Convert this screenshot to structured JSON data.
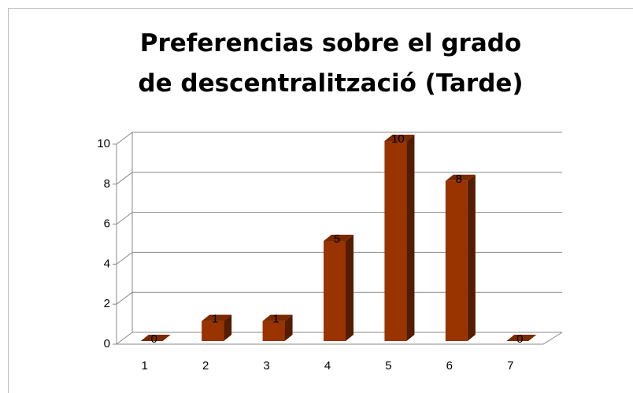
{
  "chart_data": {
    "type": "bar",
    "title": "Preferencias sobre el grado de descentralització (Tarde)",
    "categories": [
      "1",
      "2",
      "3",
      "4",
      "5",
      "6",
      "7"
    ],
    "values": [
      0,
      1,
      1,
      5,
      10,
      8,
      0
    ],
    "color": "#993300",
    "ylim": [
      0,
      10
    ],
    "yticks": [
      0,
      2,
      4,
      6,
      8,
      10
    ],
    "grid": true
  }
}
